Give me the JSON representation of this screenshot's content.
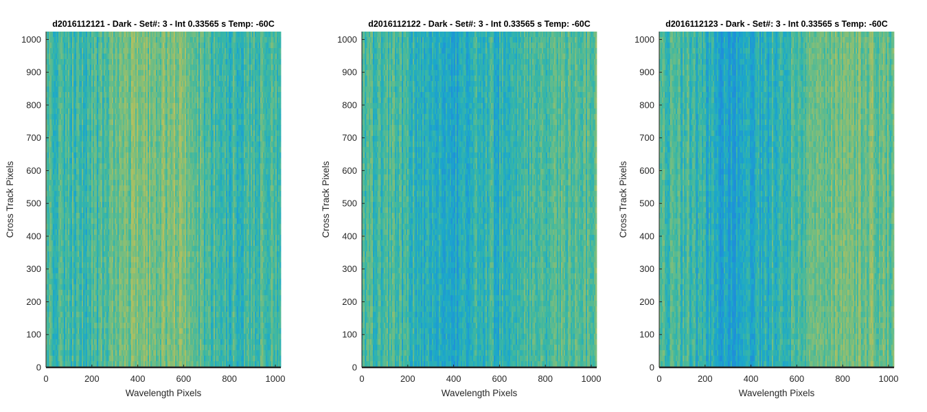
{
  "chart_data": [
    {
      "type": "heatmap",
      "title": "d2016112121 - Dark - Set#: 3 - Int 0.33565 s Temp: -60C",
      "xlabel": "Wavelength Pixels",
      "ylabel": "Cross Track Pixels",
      "xlim": [
        0,
        1024
      ],
      "ylim": [
        0,
        1024
      ],
      "xticks": [
        0,
        200,
        400,
        600,
        800,
        1000
      ],
      "yticks": [
        0,
        100,
        200,
        300,
        400,
        500,
        600,
        700,
        800,
        900,
        1000
      ],
      "colormap": [
        "#1f8fd9",
        "#1ca8c9",
        "#3bb7a3",
        "#72bd82",
        "#a6bf64",
        "#c7c25a"
      ],
      "column_profile": [
        {
          "x": 0,
          "v": 0.5
        },
        {
          "x": 50,
          "v": 0.45
        },
        {
          "x": 150,
          "v": 0.4
        },
        {
          "x": 250,
          "v": 0.42
        },
        {
          "x": 330,
          "v": 0.58
        },
        {
          "x": 380,
          "v": 0.66
        },
        {
          "x": 450,
          "v": 0.62
        },
        {
          "x": 520,
          "v": 0.62
        },
        {
          "x": 580,
          "v": 0.7
        },
        {
          "x": 640,
          "v": 0.55
        },
        {
          "x": 700,
          "v": 0.42
        },
        {
          "x": 800,
          "v": 0.38
        },
        {
          "x": 900,
          "v": 0.4
        },
        {
          "x": 1024,
          "v": 0.45
        }
      ]
    },
    {
      "type": "heatmap",
      "title": "d2016112122 - Dark - Set#: 3 - Int 0.33565 s Temp: -60C",
      "xlabel": "Wavelength Pixels",
      "ylabel": "Cross Track Pixels",
      "xlim": [
        0,
        1024
      ],
      "ylim": [
        0,
        1024
      ],
      "xticks": [
        0,
        200,
        400,
        600,
        800,
        1000
      ],
      "yticks": [
        0,
        100,
        200,
        300,
        400,
        500,
        600,
        700,
        800,
        900,
        1000
      ],
      "colormap": [
        "#1f8fd9",
        "#1ca8c9",
        "#3bb7a3",
        "#72bd82",
        "#a6bf64",
        "#c7c25a"
      ],
      "column_profile": [
        {
          "x": 0,
          "v": 0.45
        },
        {
          "x": 100,
          "v": 0.42
        },
        {
          "x": 200,
          "v": 0.4
        },
        {
          "x": 280,
          "v": 0.28
        },
        {
          "x": 350,
          "v": 0.2
        },
        {
          "x": 420,
          "v": 0.22
        },
        {
          "x": 500,
          "v": 0.3
        },
        {
          "x": 600,
          "v": 0.35
        },
        {
          "x": 700,
          "v": 0.4
        },
        {
          "x": 800,
          "v": 0.47
        },
        {
          "x": 900,
          "v": 0.5
        },
        {
          "x": 1024,
          "v": 0.52
        }
      ]
    },
    {
      "type": "heatmap",
      "title": "d2016112123 - Dark - Set#: 3 - Int 0.33565 s Temp: -60C",
      "xlabel": "Wavelength Pixels",
      "ylabel": "Cross Track Pixels",
      "xlim": [
        0,
        1024
      ],
      "ylim": [
        0,
        1024
      ],
      "xticks": [
        0,
        200,
        400,
        600,
        800,
        1000
      ],
      "yticks": [
        0,
        100,
        200,
        300,
        400,
        500,
        600,
        700,
        800,
        900,
        1000
      ],
      "colormap": [
        "#1f8fd9",
        "#1ca8c9",
        "#3bb7a3",
        "#72bd82",
        "#a6bf64",
        "#c7c25a"
      ],
      "column_profile": [
        {
          "x": 0,
          "v": 0.5
        },
        {
          "x": 100,
          "v": 0.4
        },
        {
          "x": 200,
          "v": 0.28
        },
        {
          "x": 280,
          "v": 0.16
        },
        {
          "x": 330,
          "v": 0.15
        },
        {
          "x": 400,
          "v": 0.22
        },
        {
          "x": 500,
          "v": 0.35
        },
        {
          "x": 600,
          "v": 0.45
        },
        {
          "x": 700,
          "v": 0.55
        },
        {
          "x": 800,
          "v": 0.62
        },
        {
          "x": 900,
          "v": 0.6
        },
        {
          "x": 1024,
          "v": 0.55
        }
      ]
    }
  ]
}
